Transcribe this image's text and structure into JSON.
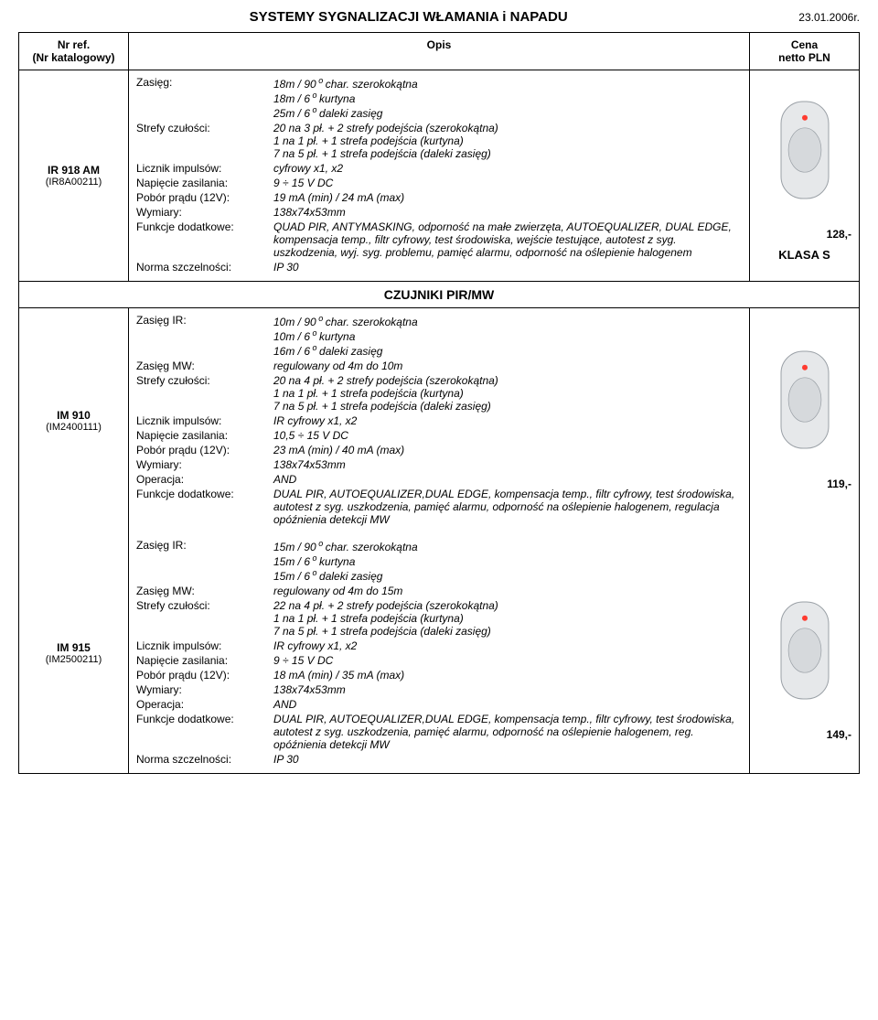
{
  "doc": {
    "title": "SYSTEMY SYGNALIZACJI WŁAMANIA i NAPADU",
    "date": "23.01.2006r."
  },
  "cols": {
    "ref_header_l1": "Nr ref.",
    "ref_header_l2": "(Nr katalogowy)",
    "desc_header": "Opis",
    "price_header_l1": "Cena",
    "price_header_l2": "netto PLN"
  },
  "items": [
    {
      "ref": "IR 918 AM",
      "refcat": "(IR8A00211)",
      "price": "128,-",
      "klasa": "KLASA S",
      "specs": [
        {
          "label": "Zasięg:",
          "val": "18m / 90 o char. szerokokątna\n18m / 6 o kurtyna\n25m / 6 o daleki zasięg"
        },
        {
          "label": "Strefy czułości:",
          "val": "20 na 3 pł. + 2 strefy podejścia (szerokokątna)\n1 na 1 pł. + 1 strefa podejścia (kurtyna)\n7 na 5 pł. + 1 strefa podejścia (daleki zasięg)"
        },
        {
          "label": "Licznik impulsów:",
          "val": "cyfrowy x1, x2"
        },
        {
          "label": "Napięcie zasilania:",
          "val": "9 ÷ 15 V DC"
        },
        {
          "label": "Pobór prądu (12V):",
          "val": "19 mA (min) / 24 mA (max)"
        },
        {
          "label": "Wymiary:",
          "val": "138x74x53mm"
        },
        {
          "label": "Funkcje dodatkowe:",
          "val": "QUAD PIR, ANTYMASKING, odporność na małe zwierzęta, AUTOEQUALIZER, DUAL EDGE, kompensacja temp., filtr cyfrowy, test środowiska, wejście testujące, autotest z syg. uszkodzenia, wyj. syg. problemu, pamięć alarmu, odporność na oślepienie halogenem"
        },
        {
          "label": "Norma szczelności:",
          "val": "IP 30"
        }
      ]
    },
    {
      "ref": "IM 910",
      "refcat": "(IM2400111)",
      "price": "119,-",
      "specs": [
        {
          "label": "Zasięg IR:",
          "val": "10m / 90 o char. szerokokątna\n10m / 6 o kurtyna\n16m / 6 o daleki zasięg"
        },
        {
          "label": "Zasięg MW:",
          "val": "regulowany od 4m do 10m"
        },
        {
          "label": "Strefy czułości:",
          "val": "20 na 4 pł. + 2 strefy podejścia (szerokokątna)\n1 na 1 pł. + 1 strefa podejścia (kurtyna)\n7 na 5 pł. + 1 strefa podejścia (daleki zasięg)"
        },
        {
          "label": "Licznik impulsów:",
          "val": "IR cyfrowy x1, x2"
        },
        {
          "label": "Napięcie zasilania:",
          "val": "10,5 ÷ 15 V DC"
        },
        {
          "label": "Pobór prądu (12V):",
          "val": "23 mA (min) / 40 mA (max)"
        },
        {
          "label": "Wymiary:",
          "val": "138x74x53mm"
        },
        {
          "label": "Operacja:",
          "val": "AND"
        },
        {
          "label": "Funkcje dodatkowe:",
          "val": "DUAL PIR, AUTOEQUALIZER,DUAL EDGE, kompensacja temp., filtr cyfrowy, test środowiska, autotest z syg. uszkodzenia, pamięć alarmu, odporność na oślepienie halogenem, regulacja opóźnienia detekcji MW"
        }
      ]
    },
    {
      "ref": "IM 915",
      "refcat": "(IM2500211)",
      "price": "149,-",
      "specs": [
        {
          "label": "Zasięg IR:",
          "val": "15m / 90 o char. szerokokątna\n15m / 6 o kurtyna\n15m / 6 o daleki zasięg"
        },
        {
          "label": "Zasięg MW:",
          "val": "regulowany od 4m do 15m"
        },
        {
          "label": "Strefy czułości:",
          "val": "22 na 4 pł. + 2 strefy podejścia (szerokokątna)\n1 na 1 pł. + 1 strefa podejścia (kurtyna)\n7 na 5 pł. + 1 strefa podejścia (daleki zasięg)"
        },
        {
          "label": "Licznik impulsów:",
          "val": "IR cyfrowy  x1, x2"
        },
        {
          "label": "Napięcie zasilania:",
          "val": "9 ÷ 15 V DC"
        },
        {
          "label": "Pobór prądu (12V):",
          "val": "18 mA (min) / 35 mA (max)"
        },
        {
          "label": "Wymiary:",
          "val": "138x74x53mm"
        },
        {
          "label": "Operacja:",
          "val": "AND"
        },
        {
          "label": "Funkcje dodatkowe:",
          "val": "DUAL PIR, AUTOEQUALIZER,DUAL EDGE, kompensacja temp., filtr cyfrowy, test środowiska, autotest z syg. uszkodzenia, pamięć alarmu, odporność na oślepienie halogenem, reg. opóźnienia detekcji MW"
        },
        {
          "label": "Norma szczelności:",
          "val": "IP 30"
        }
      ]
    }
  ],
  "section_mid": "CZUJNIKI PIR/MW",
  "sensor_svg": {
    "body_fill": "#e6e8ea",
    "body_stroke": "#9aa0a6",
    "lens_fill": "#d6d9dc",
    "led_fill": "#ff3b30",
    "w": 56,
    "h": 110
  }
}
